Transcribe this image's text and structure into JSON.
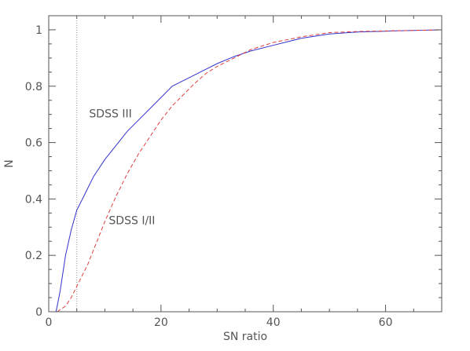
{
  "chart_data": {
    "type": "line",
    "xlabel": "SN ratio",
    "ylabel": "N",
    "xlim": [
      0,
      70
    ],
    "ylim": [
      0,
      1.05
    ],
    "xticks": [
      0,
      20,
      40,
      60
    ],
    "yticks": [
      0,
      0.2,
      0.4,
      0.6,
      0.8,
      1
    ],
    "xtick_labels": [
      "0",
      "20",
      "40",
      "60"
    ],
    "ytick_labels": [
      "0",
      "0.2",
      "0.4",
      "0.6",
      "0.8",
      "1"
    ],
    "grid": false,
    "reference_line": {
      "orientation": "vertical",
      "x": 5,
      "style": "dotted",
      "color": "#999999"
    },
    "series": [
      {
        "label": "SDSS III",
        "color": "#3333cc",
        "style": "solid",
        "x": [
          1.3,
          2,
          3,
          4,
          5,
          6,
          7,
          8,
          9,
          10,
          12,
          14,
          16,
          18,
          20,
          22,
          24,
          26,
          28,
          30,
          33,
          36,
          40,
          45,
          50,
          55,
          60,
          65,
          70
        ],
        "y": [
          0,
          0.07,
          0.2,
          0.29,
          0.36,
          0.4,
          0.44,
          0.48,
          0.51,
          0.54,
          0.59,
          0.64,
          0.68,
          0.72,
          0.76,
          0.8,
          0.82,
          0.84,
          0.86,
          0.88,
          0.905,
          0.925,
          0.945,
          0.97,
          0.985,
          0.992,
          0.995,
          0.998,
          1.0
        ]
      },
      {
        "label": "SDSS I/II",
        "color": "#e04040",
        "style": "dashed",
        "x": [
          1.5,
          3,
          4,
          5,
          6,
          7,
          8,
          9,
          10,
          12,
          14,
          16,
          18,
          20,
          22,
          24,
          26,
          28,
          30,
          33,
          36,
          40,
          45,
          50,
          55,
          60,
          65,
          70
        ],
        "y": [
          0,
          0.02,
          0.05,
          0.09,
          0.13,
          0.17,
          0.22,
          0.27,
          0.32,
          0.41,
          0.49,
          0.56,
          0.62,
          0.68,
          0.73,
          0.77,
          0.81,
          0.845,
          0.87,
          0.9,
          0.93,
          0.955,
          0.975,
          0.99,
          0.994,
          0.996,
          0.998,
          1.0
        ]
      }
    ],
    "annotations": [
      {
        "text": "SDSS III",
        "x": 7.2,
        "y": 0.69
      },
      {
        "text": "SDSS I/II",
        "x": 10.7,
        "y": 0.31
      }
    ]
  }
}
